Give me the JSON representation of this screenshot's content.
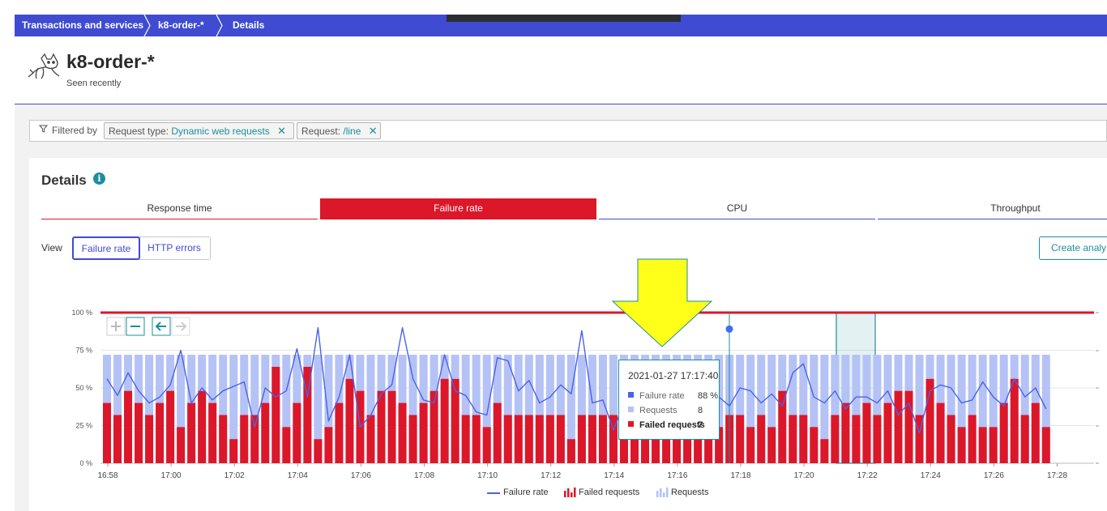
{
  "breadcrumb": {
    "items": [
      "Transactions and services",
      "k8-order-*",
      "Details"
    ]
  },
  "header": {
    "title": "k8-order-*",
    "subtitle": "Seen recently"
  },
  "filter": {
    "label": "Filtered by",
    "chips": [
      {
        "key": "Request type:",
        "value": "Dynamic web requests"
      },
      {
        "key": "Request:",
        "value": "/line"
      }
    ]
  },
  "details": {
    "title": "Details",
    "tabs": [
      "Response time",
      "Failure rate",
      "CPU",
      "Throughput"
    ],
    "active_tab": "Failure rate",
    "view_label": "View",
    "view_buttons": [
      "Failure rate",
      "HTTP errors"
    ],
    "create_button": "Create analy"
  },
  "colors": {
    "brand": "#3f4bd1",
    "accent": "#1a8f9a",
    "failure": "#dc172a",
    "requests": "#b5c2f6",
    "line": "#4a63e6",
    "annotation_arrow": "#ffff19"
  },
  "tooltip": {
    "time": "2021-01-27 17:17:40",
    "rows": [
      {
        "label": "Failure rate",
        "value": "88 %"
      },
      {
        "label": "Requests",
        "value": "8"
      },
      {
        "label": "Failed requests",
        "value": "7"
      }
    ]
  },
  "legend": {
    "line": "Failure rate",
    "failed": "Failed requests",
    "requests": "Requests"
  },
  "chart_data": {
    "type": "bar",
    "title": "Failure rate",
    "y_ticks": [
      "0 %",
      "25 %",
      "50 %",
      "75 %",
      "100 %"
    ],
    "x_ticks": [
      "16:58",
      "17:00",
      "17:02",
      "17:04",
      "17:06",
      "17:08",
      "17:10",
      "17:12",
      "17:14",
      "17:16",
      "17:18",
      "17:20",
      "17:22",
      "17:24",
      "17:26",
      "17:28"
    ],
    "ylim": [
      0,
      100
    ],
    "threshold": 100,
    "series": [
      {
        "name": "Requests",
        "values": [
          72,
          72,
          72,
          72,
          72,
          72,
          72,
          72,
          72,
          72,
          72,
          72,
          72,
          72,
          72,
          72,
          72,
          72,
          72,
          72,
          72,
          72,
          72,
          72,
          72,
          72,
          72,
          72,
          72,
          72,
          72,
          72,
          72,
          72,
          72,
          72,
          72,
          72,
          72,
          72,
          72,
          72,
          72,
          72,
          72,
          72,
          72,
          72,
          72,
          72,
          72,
          72,
          72,
          72,
          72,
          72,
          72,
          72,
          72,
          72,
          72,
          72,
          72,
          72,
          72,
          72,
          72,
          72,
          72,
          72,
          72,
          72,
          72,
          72,
          72,
          72,
          72,
          72,
          72,
          72,
          72,
          72,
          72,
          72,
          72,
          72,
          72,
          72,
          72,
          72
        ]
      },
      {
        "name": "Failed requests",
        "values": [
          40,
          32,
          48,
          40,
          32,
          40,
          48,
          24,
          40,
          48,
          40,
          32,
          16,
          32,
          32,
          40,
          64,
          24,
          40,
          64,
          16,
          24,
          40,
          56,
          48,
          32,
          48,
          48,
          40,
          32,
          40,
          48,
          56,
          56,
          32,
          32,
          24,
          40,
          32,
          32,
          32,
          32,
          32,
          32,
          16,
          32,
          32,
          32,
          32,
          32,
          32,
          32,
          32,
          32,
          32,
          32,
          32,
          56,
          24,
          32,
          32,
          24,
          32,
          24,
          48,
          32,
          32,
          24,
          16,
          32,
          40,
          32,
          40,
          32,
          40,
          48,
          48,
          32,
          56,
          40,
          32,
          24,
          32,
          24,
          24,
          40,
          56,
          32,
          40,
          24
        ]
      },
      {
        "name": "Failure rate",
        "values": [
          56,
          45,
          60,
          48,
          40,
          44,
          52,
          75,
          40,
          50,
          42,
          48,
          51,
          54,
          24,
          50,
          44,
          48,
          76,
          44,
          90,
          28,
          44,
          72,
          24,
          32,
          46,
          52,
          90,
          56,
          42,
          40,
          72,
          48,
          45,
          34,
          32,
          70,
          68,
          48,
          55,
          40,
          44,
          52,
          46,
          88,
          40,
          42,
          22,
          40,
          44,
          50,
          38,
          46,
          44,
          40,
          42,
          44,
          44,
          38,
          50,
          48,
          40,
          46,
          38,
          60,
          66,
          44,
          40,
          48,
          36,
          44,
          44,
          40,
          48,
          32,
          40,
          20,
          48,
          52,
          50,
          40,
          42,
          54,
          44,
          38,
          56,
          44,
          50,
          36
        ]
      }
    ],
    "highlight_time": "17:17:40",
    "highlight_value": 88
  }
}
